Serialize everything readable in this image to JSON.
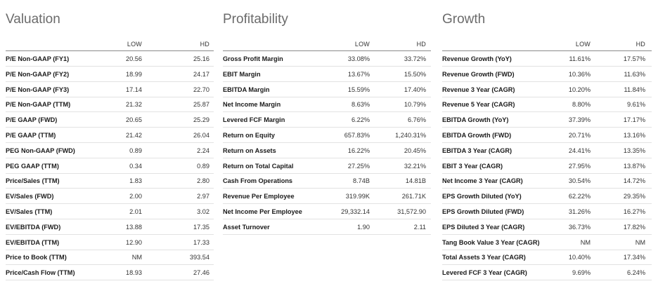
{
  "columns": {
    "low": "LOW",
    "hd": "HD"
  },
  "sections": [
    {
      "title": "Valuation",
      "rows": [
        {
          "label": "P/E Non-GAAP (FY1)",
          "low": "20.56",
          "hd": "25.16"
        },
        {
          "label": "P/E Non-GAAP (FY2)",
          "low": "18.99",
          "hd": "24.17"
        },
        {
          "label": "P/E Non-GAAP (FY3)",
          "low": "17.14",
          "hd": "22.70"
        },
        {
          "label": "P/E Non-GAAP (TTM)",
          "low": "21.32",
          "hd": "25.87"
        },
        {
          "label": "P/E GAAP (FWD)",
          "low": "20.65",
          "hd": "25.29"
        },
        {
          "label": "P/E GAAP (TTM)",
          "low": "21.42",
          "hd": "26.04"
        },
        {
          "label": "PEG Non-GAAP (FWD)",
          "low": "0.89",
          "hd": "2.24"
        },
        {
          "label": "PEG GAAP (TTM)",
          "low": "0.34",
          "hd": "0.89"
        },
        {
          "label": "Price/Sales (TTM)",
          "low": "1.83",
          "hd": "2.80"
        },
        {
          "label": "EV/Sales (FWD)",
          "low": "2.00",
          "hd": "2.97"
        },
        {
          "label": "EV/Sales (TTM)",
          "low": "2.01",
          "hd": "3.02"
        },
        {
          "label": "EV/EBITDA (FWD)",
          "low": "13.88",
          "hd": "17.35"
        },
        {
          "label": "EV/EBITDA (TTM)",
          "low": "12.90",
          "hd": "17.33"
        },
        {
          "label": "Price to Book (TTM)",
          "low": "NM",
          "hd": "393.54"
        },
        {
          "label": "Price/Cash Flow (TTM)",
          "low": "18.93",
          "hd": "27.46"
        }
      ]
    },
    {
      "title": "Profitability",
      "rows": [
        {
          "label": "Gross Profit Margin",
          "low": "33.08%",
          "hd": "33.72%"
        },
        {
          "label": "EBIT Margin",
          "low": "13.67%",
          "hd": "15.50%"
        },
        {
          "label": "EBITDA Margin",
          "low": "15.59%",
          "hd": "17.40%"
        },
        {
          "label": "Net Income Margin",
          "low": "8.63%",
          "hd": "10.79%"
        },
        {
          "label": "Levered FCF Margin",
          "low": "6.22%",
          "hd": "6.76%"
        },
        {
          "label": "Return on Equity",
          "low": "657.83%",
          "hd": "1,240.31%"
        },
        {
          "label": "Return on Assets",
          "low": "16.22%",
          "hd": "20.45%"
        },
        {
          "label": "Return on Total Capital",
          "low": "27.25%",
          "hd": "32.21%"
        },
        {
          "label": "Cash From Operations",
          "low": "8.74B",
          "hd": "14.81B"
        },
        {
          "label": "Revenue Per Employee",
          "low": "319.99K",
          "hd": "261.71K"
        },
        {
          "label": "Net Income Per Employee",
          "low": "29,332.14",
          "hd": "31,572.90"
        },
        {
          "label": "Asset Turnover",
          "low": "1.90",
          "hd": "2.11"
        }
      ]
    },
    {
      "title": "Growth",
      "rows": [
        {
          "label": "Revenue Growth (YoY)",
          "low": "11.61%",
          "hd": "17.57%"
        },
        {
          "label": "Revenue Growth (FWD)",
          "low": "10.36%",
          "hd": "11.63%"
        },
        {
          "label": "Revenue 3 Year (CAGR)",
          "low": "10.20%",
          "hd": "11.84%"
        },
        {
          "label": "Revenue 5 Year (CAGR)",
          "low": "8.80%",
          "hd": "9.61%"
        },
        {
          "label": "EBITDA Growth (YoY)",
          "low": "37.39%",
          "hd": "17.17%"
        },
        {
          "label": "EBITDA Growth (FWD)",
          "low": "20.71%",
          "hd": "13.16%"
        },
        {
          "label": "EBITDA 3 Year (CAGR)",
          "low": "24.41%",
          "hd": "13.35%"
        },
        {
          "label": "EBIT 3 Year (CAGR)",
          "low": "27.95%",
          "hd": "13.87%"
        },
        {
          "label": "Net Income 3 Year (CAGR)",
          "low": "30.54%",
          "hd": "14.72%"
        },
        {
          "label": "EPS Growth Diluted (YoY)",
          "low": "62.22%",
          "hd": "29.35%"
        },
        {
          "label": "EPS Growth Diluted (FWD)",
          "low": "31.26%",
          "hd": "16.27%"
        },
        {
          "label": "EPS Diluted 3 Year (CAGR)",
          "low": "36.73%",
          "hd": "17.82%"
        },
        {
          "label": "Tang Book Value 3 Year (CAGR)",
          "low": "NM",
          "hd": "NM"
        },
        {
          "label": "Total Assets 3 Year (CAGR)",
          "low": "10.40%",
          "hd": "17.34%"
        },
        {
          "label": "Levered FCF 3 Year (CAGR)",
          "low": "9.69%",
          "hd": "6.24%"
        }
      ]
    }
  ]
}
